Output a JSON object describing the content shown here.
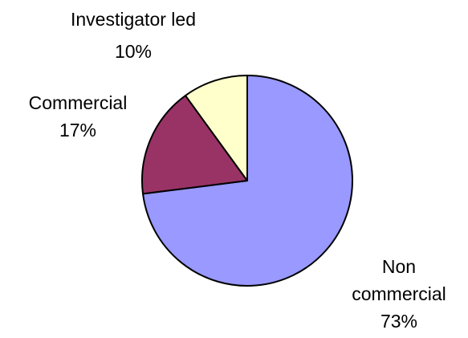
{
  "chart_data": {
    "type": "pie",
    "slices": [
      {
        "category": "Non commercial",
        "label_lines": [
          "Non",
          "commercial",
          "73%"
        ],
        "value": 73,
        "color": "#9999ff"
      },
      {
        "category": "Commercial",
        "label_lines": [
          "Commercial",
          "17%"
        ],
        "value": 17,
        "color": "#993366"
      },
      {
        "category": "Investigator led",
        "label_lines": [
          "Investigator led",
          "10%"
        ],
        "value": 10,
        "color": "#ffffcc"
      }
    ],
    "start": "12 o'clock",
    "direction": "clockwise",
    "legend": "none"
  }
}
